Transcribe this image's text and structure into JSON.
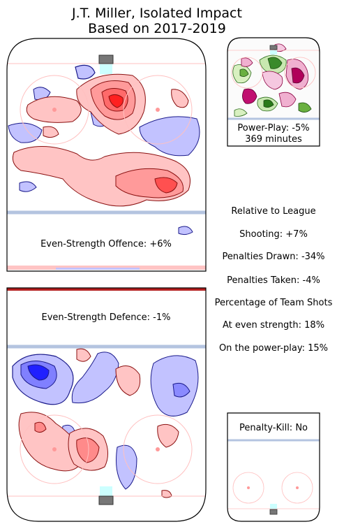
{
  "title_line1": "J.T. Miller, Isolated Impact",
  "title_line2": "Based on 2017-2019",
  "ev_offence_label": "Even-Strength Offence: +6%",
  "ev_defence_label": "Even-Strength Defence: -1%",
  "pp_label": "Power-Play: -5%",
  "pp_minutes": "369 minutes",
  "pk_label": "Penalty-Kill: No",
  "stats": [
    "Relative to League",
    "Shooting: +7%",
    "Penalties Drawn: -34%",
    "Penalties Taken: -4%",
    "Percentage of Team Shots",
    "At even strength: 18%",
    "On the power-play: 15%"
  ],
  "chart_data": [
    {
      "type": "heatmap",
      "panel": "even-strength offence",
      "value_pct": 6,
      "hotspots": [
        {
          "zone": "slot-high",
          "sign": "+",
          "intensity": "high"
        },
        {
          "zone": "left-faceoff",
          "sign": "-",
          "intensity": "low"
        },
        {
          "zone": "point-right",
          "sign": "+",
          "intensity": "medium"
        }
      ]
    },
    {
      "type": "heatmap",
      "panel": "even-strength defence",
      "value_pct": -1,
      "hotspots": [
        {
          "zone": "top-left",
          "sign": "-",
          "intensity": "high"
        },
        {
          "zone": "slot",
          "sign": "+",
          "intensity": "medium"
        },
        {
          "zone": "right-circle",
          "sign": "+",
          "intensity": "low"
        }
      ]
    },
    {
      "type": "heatmap",
      "panel": "power-play",
      "value_pct": -5,
      "minutes": 369
    },
    {
      "type": "heatmap",
      "panel": "penalty-kill",
      "value": "No"
    }
  ],
  "colors": {
    "positive": "#ff0000",
    "negative": "#0000ff",
    "pp_positive": "#2a7a1a",
    "pp_negative": "#b0005a",
    "line": "#aabbdd",
    "rink": "#000000"
  }
}
